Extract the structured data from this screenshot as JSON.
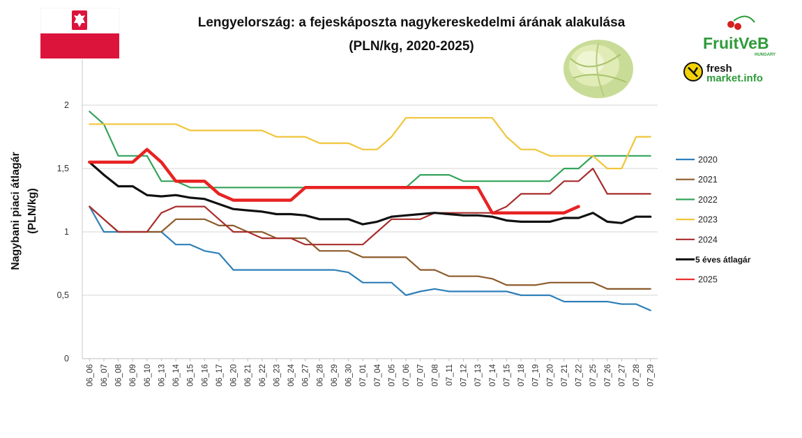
{
  "colors": {
    "2020": "#2e7fb8",
    "2021": "#8c5a2a",
    "2022": "#33a35a",
    "2023": "#f0c53a",
    "2024": "#a82c2c",
    "avg": "#111111",
    "2025": "#e82222",
    "grid": "#d6d6d6",
    "flag_white": "#ffffff",
    "flag_red": "#dc143c",
    "logo_green": "#2e9b3a",
    "logo_red": "#d62020"
  },
  "logos": {
    "fruitveb": "FruitVeB",
    "fruitveb_sub": "HUNGARY",
    "freshmarket_line1": "fresh",
    "freshmarket_line2": "market.info"
  },
  "chart_data": {
    "type": "line",
    "title_line1": "Lengyelország: a fejeskáposzta nagykereskedelmi árának alakulása",
    "title_line2": "(PLN/kg, 2020-2025)",
    "ylabel_line1": "Nagybani piaci átlagár",
    "ylabel_line2": "(PLN/kg)",
    "ylim": [
      0,
      2
    ],
    "yticks": [
      0,
      0.5,
      1,
      1.5,
      2
    ],
    "ytick_labels": [
      "0",
      "0,5",
      "1",
      "1,5",
      "2"
    ],
    "grid": true,
    "legend_position": "right",
    "categories": [
      "06_06",
      "06_07",
      "06_08",
      "06_09",
      "06_10",
      "06_13",
      "06_14",
      "06_15",
      "06_16",
      "06_17",
      "06_20",
      "06_21",
      "06_22",
      "06_23",
      "06_24",
      "06_27",
      "06_28",
      "06_29",
      "06_30",
      "07_01",
      "07_04",
      "07_05",
      "07_06",
      "07_07",
      "07_08",
      "07_11",
      "07_12",
      "07_13",
      "07_14",
      "07_15",
      "07_18",
      "07_19",
      "07_20",
      "07_21",
      "07_22",
      "07_25",
      "07_26",
      "07_27",
      "07_28",
      "07_29"
    ],
    "series": [
      {
        "name": "2020",
        "values": [
          1.2,
          1.0,
          1.0,
          1.0,
          1.0,
          1.0,
          0.9,
          0.9,
          0.85,
          0.83,
          0.7,
          0.7,
          0.7,
          0.7,
          0.7,
          0.7,
          0.7,
          0.7,
          0.68,
          0.6,
          0.6,
          0.6,
          0.5,
          0.53,
          0.55,
          0.53,
          0.53,
          0.53,
          0.53,
          0.53,
          0.5,
          0.5,
          0.5,
          0.45,
          0.45,
          0.45,
          0.45,
          0.43,
          0.43,
          0.38
        ]
      },
      {
        "name": "2021",
        "values": [
          1.2,
          1.1,
          1.0,
          1.0,
          1.0,
          1.0,
          1.1,
          1.1,
          1.1,
          1.05,
          1.05,
          1.0,
          1.0,
          0.95,
          0.95,
          0.95,
          0.85,
          0.85,
          0.85,
          0.8,
          0.8,
          0.8,
          0.8,
          0.7,
          0.7,
          0.65,
          0.65,
          0.65,
          0.63,
          0.58,
          0.58,
          0.58,
          0.6,
          0.6,
          0.6,
          0.6,
          0.55,
          0.55,
          0.55,
          0.55
        ]
      },
      {
        "name": "2022",
        "values": [
          1.95,
          1.85,
          1.6,
          1.6,
          1.6,
          1.4,
          1.4,
          1.35,
          1.35,
          1.35,
          1.35,
          1.35,
          1.35,
          1.35,
          1.35,
          1.35,
          1.35,
          1.35,
          1.35,
          1.35,
          1.35,
          1.35,
          1.35,
          1.45,
          1.45,
          1.45,
          1.4,
          1.4,
          1.4,
          1.4,
          1.4,
          1.4,
          1.4,
          1.5,
          1.5,
          1.6,
          1.6,
          1.6,
          1.6,
          1.6
        ]
      },
      {
        "name": "2023",
        "values": [
          1.85,
          1.85,
          1.85,
          1.85,
          1.85,
          1.85,
          1.85,
          1.8,
          1.8,
          1.8,
          1.8,
          1.8,
          1.8,
          1.75,
          1.75,
          1.75,
          1.7,
          1.7,
          1.7,
          1.65,
          1.65,
          1.75,
          1.9,
          1.9,
          1.9,
          1.9,
          1.9,
          1.9,
          1.9,
          1.75,
          1.65,
          1.65,
          1.6,
          1.6,
          1.6,
          1.6,
          1.5,
          1.5,
          1.75,
          1.75
        ]
      },
      {
        "name": "2024",
        "values": [
          1.2,
          1.1,
          1.0,
          1.0,
          1.0,
          1.15,
          1.2,
          1.2,
          1.2,
          1.1,
          1.0,
          1.0,
          0.95,
          0.95,
          0.95,
          0.9,
          0.9,
          0.9,
          0.9,
          0.9,
          1.0,
          1.1,
          1.1,
          1.1,
          1.15,
          1.15,
          1.15,
          1.15,
          1.15,
          1.2,
          1.3,
          1.3,
          1.3,
          1.4,
          1.4,
          1.5,
          1.3,
          1.3,
          1.3,
          1.3
        ]
      },
      {
        "name": "5 éves átlagár",
        "values": [
          1.55,
          1.45,
          1.36,
          1.36,
          1.29,
          1.28,
          1.29,
          1.27,
          1.26,
          1.22,
          1.18,
          1.17,
          1.16,
          1.14,
          1.14,
          1.13,
          1.1,
          1.1,
          1.1,
          1.06,
          1.08,
          1.12,
          1.13,
          1.14,
          1.15,
          1.14,
          1.13,
          1.13,
          1.12,
          1.09,
          1.08,
          1.08,
          1.08,
          1.11,
          1.11,
          1.15,
          1.08,
          1.07,
          1.12,
          1.12
        ]
      },
      {
        "name": "2025",
        "values": [
          1.55,
          1.55,
          1.55,
          1.55,
          1.65,
          1.55,
          1.4,
          1.4,
          1.4,
          1.3,
          1.25,
          1.25,
          1.25,
          1.25,
          1.25,
          1.35,
          1.35,
          1.35,
          1.35,
          1.35,
          1.35,
          1.35,
          1.35,
          1.35,
          1.35,
          1.35,
          1.35,
          1.35,
          1.15,
          1.15,
          1.15,
          1.15,
          1.15,
          1.15,
          1.2,
          null,
          null,
          null,
          null,
          null
        ]
      }
    ]
  }
}
